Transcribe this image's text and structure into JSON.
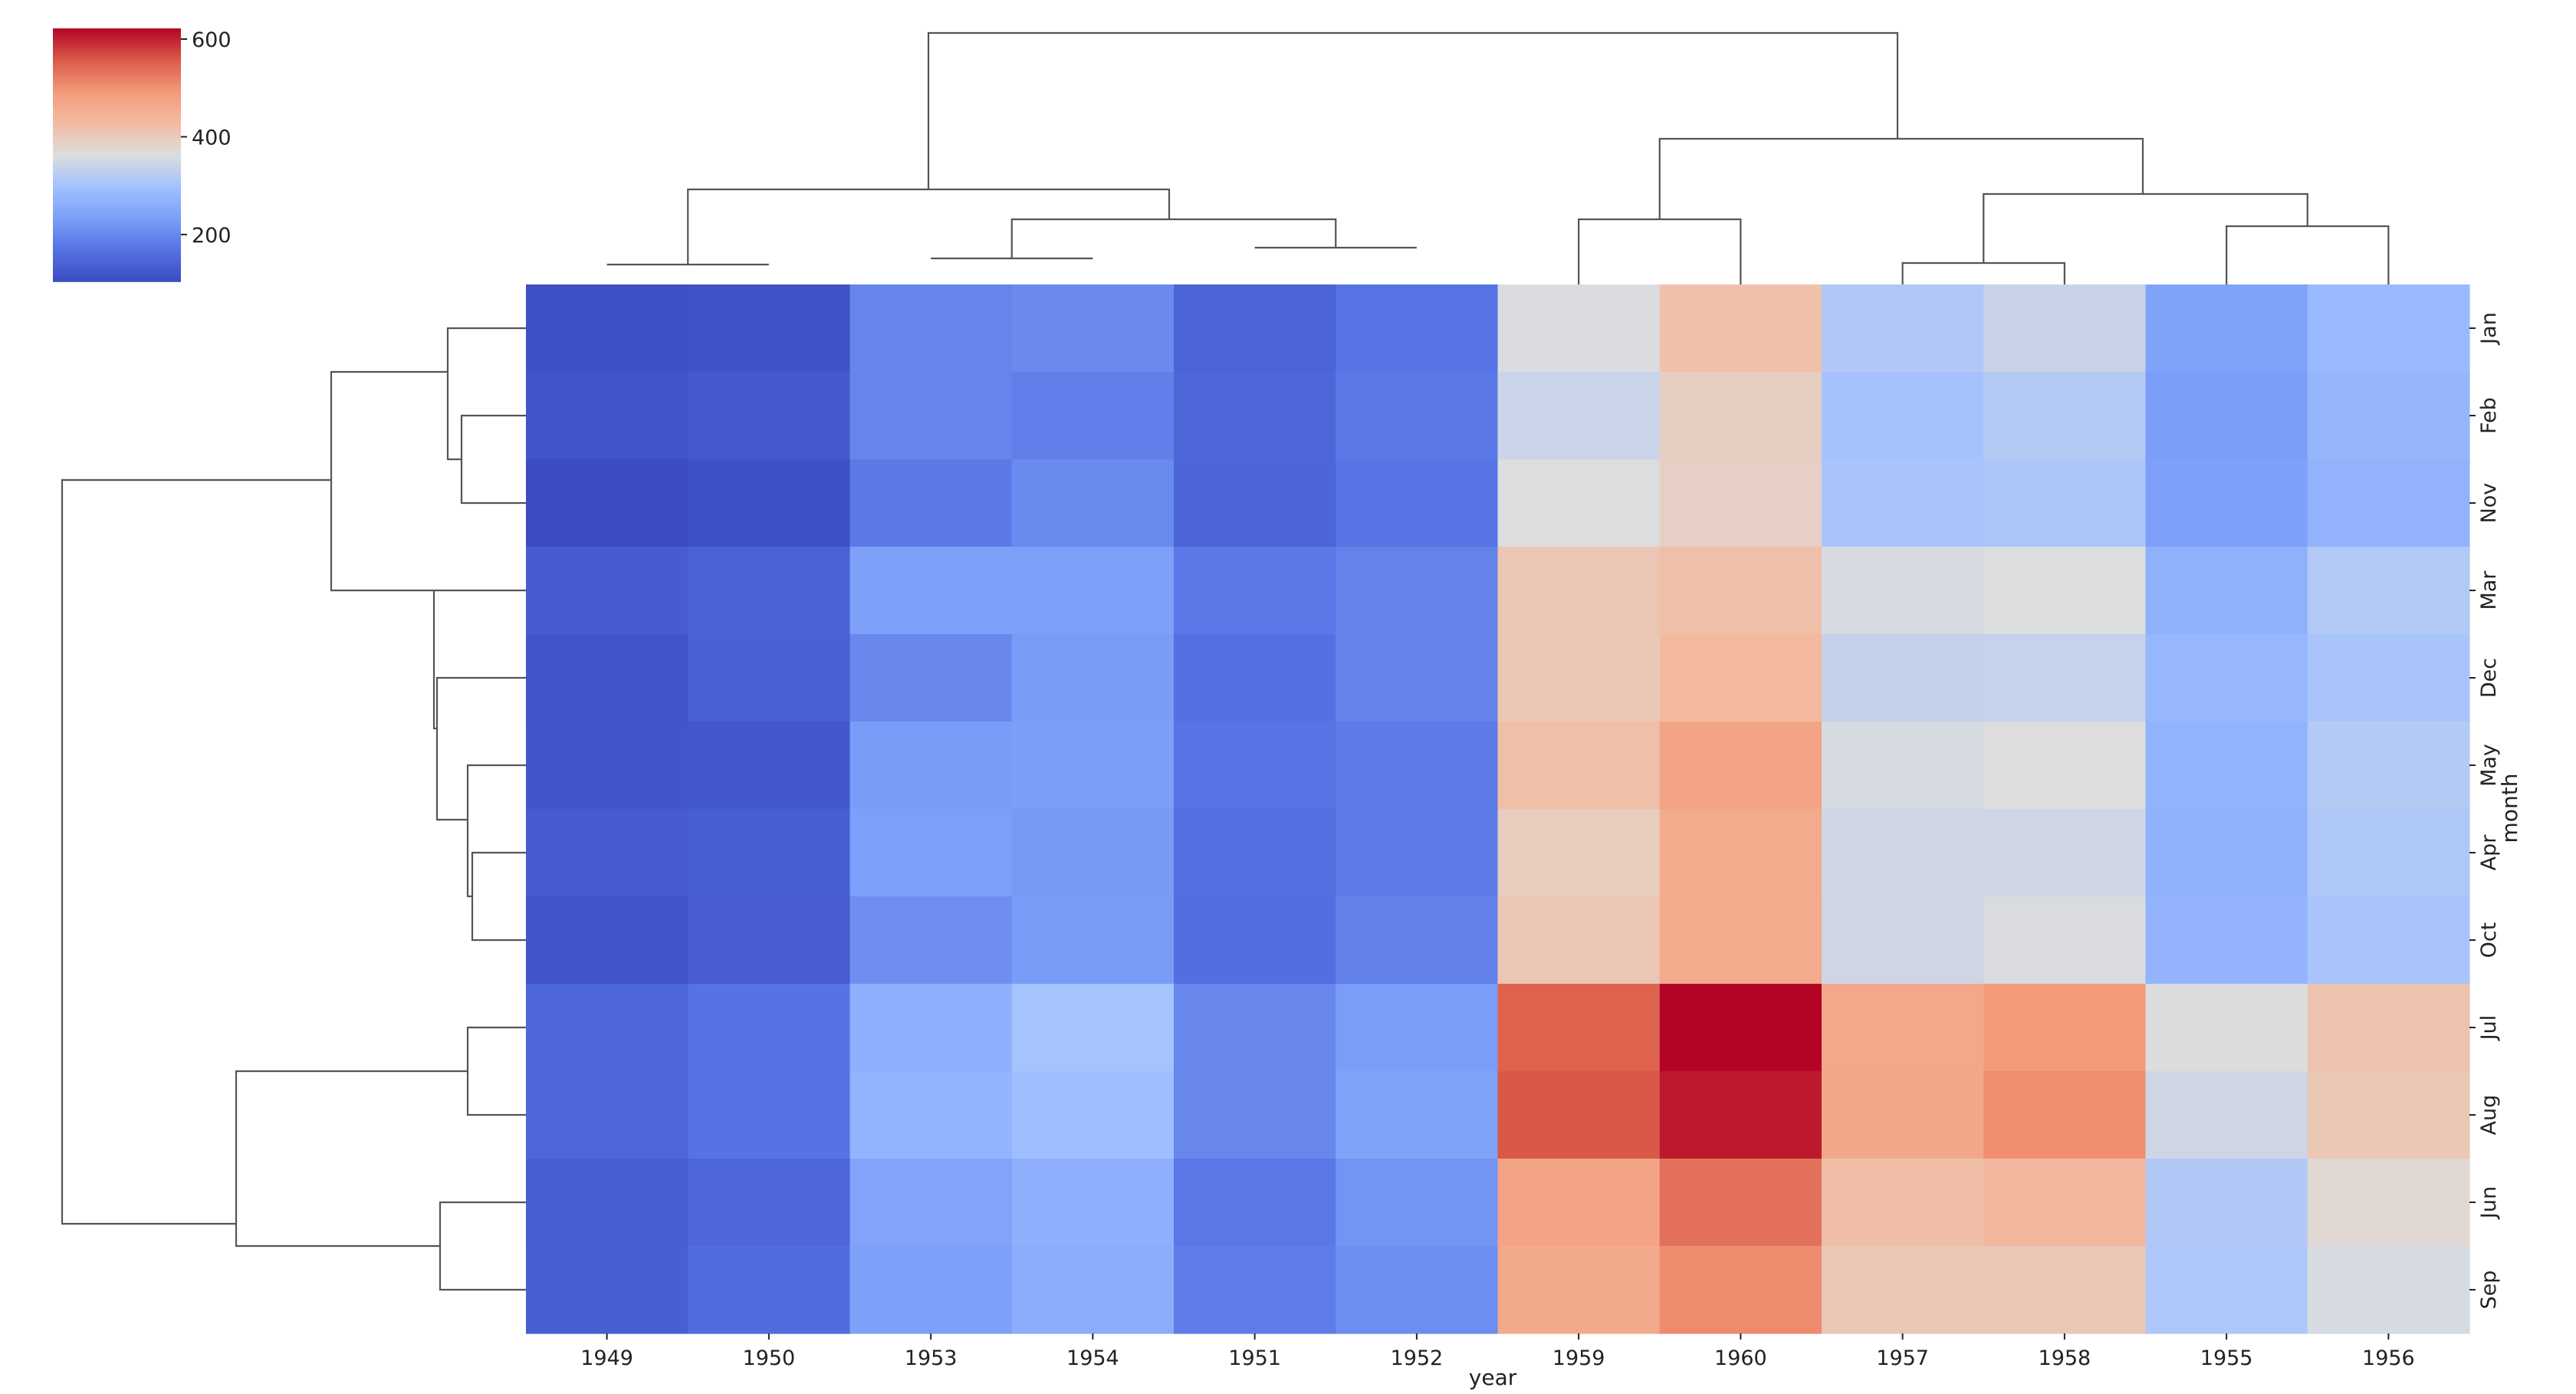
{
  "chart_data": {
    "type": "heatmap",
    "variant": "clustermap",
    "colormap": "coolwarm",
    "xlabel": "year",
    "ylabel": "month",
    "x_categories": [
      "1949",
      "1950",
      "1953",
      "1954",
      "1951",
      "1952",
      "1959",
      "1960",
      "1957",
      "1958",
      "1955",
      "1956"
    ],
    "y_categories": [
      "Jan",
      "Feb",
      "Nov",
      "Mar",
      "Dec",
      "May",
      "Apr",
      "Oct",
      "Jul",
      "Aug",
      "Jun",
      "Sep"
    ],
    "values": [
      [
        112,
        115,
        196,
        204,
        145,
        171,
        360,
        417,
        315,
        340,
        242,
        284
      ],
      [
        118,
        126,
        196,
        188,
        150,
        180,
        342,
        391,
        301,
        318,
        233,
        277
      ],
      [
        104,
        114,
        180,
        203,
        146,
        172,
        362,
        390,
        305,
        310,
        237,
        271
      ],
      [
        132,
        141,
        236,
        235,
        178,
        193,
        406,
        419,
        356,
        362,
        267,
        317
      ],
      [
        118,
        140,
        201,
        229,
        166,
        194,
        405,
        432,
        336,
        337,
        278,
        306
      ],
      [
        121,
        125,
        229,
        234,
        172,
        183,
        420,
        472,
        355,
        363,
        270,
        318
      ],
      [
        129,
        135,
        235,
        227,
        163,
        181,
        396,
        461,
        348,
        348,
        269,
        313
      ],
      [
        119,
        133,
        211,
        229,
        162,
        191,
        407,
        461,
        347,
        359,
        274,
        306
      ],
      [
        148,
        170,
        264,
        302,
        199,
        230,
        548,
        622,
        465,
        491,
        364,
        413
      ],
      [
        148,
        170,
        272,
        293,
        199,
        242,
        559,
        606,
        467,
        505,
        347,
        405
      ],
      [
        135,
        149,
        243,
        264,
        178,
        218,
        472,
        535,
        422,
        435,
        315,
        374
      ],
      [
        136,
        158,
        237,
        259,
        184,
        209,
        463,
        508,
        404,
        404,
        312,
        355
      ]
    ],
    "colorbar": {
      "vmin": 104,
      "vmax": 622,
      "ticks": [
        200,
        400,
        600
      ]
    }
  }
}
